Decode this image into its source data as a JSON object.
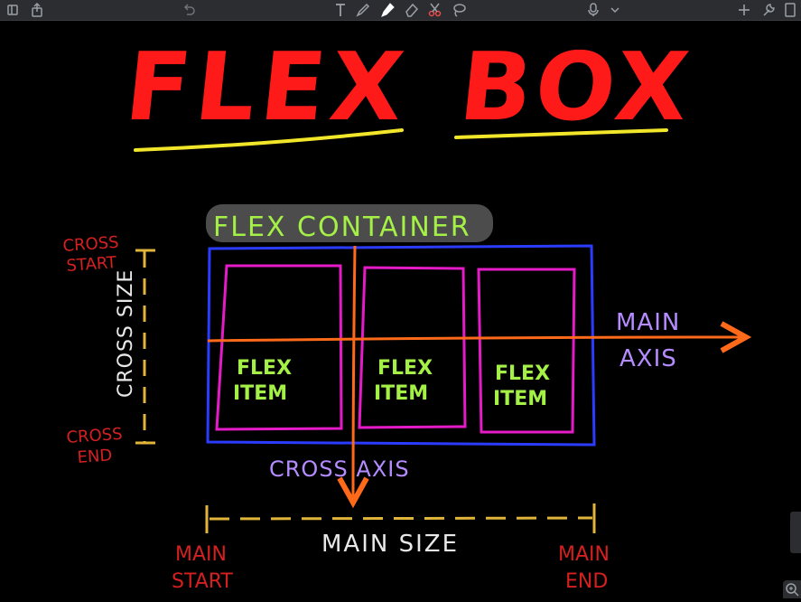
{
  "diagram": {
    "title_word1": "FLEX",
    "title_word2": "BOX",
    "container_label": "FLEX CONTAINER",
    "items": [
      {
        "line1": "FLEX",
        "line2": "ITEM"
      },
      {
        "line1": "FLEX",
        "line2": "ITEM"
      },
      {
        "line1": "FLEX",
        "line2": "ITEM"
      }
    ],
    "main_axis_line1": "MAIN",
    "main_axis_line2": "AXIS",
    "cross_axis": "CROSS AXIS",
    "cross_start_line1": "CROSS",
    "cross_start_line2": "START",
    "cross_end_line1": "CROSS",
    "cross_end_line2": "END",
    "cross_size": "CROSS SIZE",
    "main_size": "MAIN SIZE",
    "main_start_line1": "MAIN",
    "main_start_line2": "START",
    "main_end_line1": "MAIN",
    "main_end_line2": "END"
  },
  "colors": {
    "title": "#ff1a1a",
    "underline": "#f2e62a",
    "container": "#2b3cff",
    "item": "#e61bc8",
    "label_green": "#a4f046",
    "axis": "#ff6a1a",
    "purple": "#b58cff",
    "red_label": "#d42020",
    "white_label": "#e8e8e8",
    "yellow_dim": "#e0b53a"
  },
  "toolbar": {
    "icons": [
      "sidebar-icon",
      "share-icon",
      "undo-icon",
      "text-tool-icon",
      "pen-icon",
      "highlighter-icon",
      "eraser-icon",
      "scissors-icon",
      "lasso-icon",
      "microphone-icon",
      "chevron-down-icon",
      "add-icon",
      "wrench-icon",
      "page-icon"
    ]
  }
}
